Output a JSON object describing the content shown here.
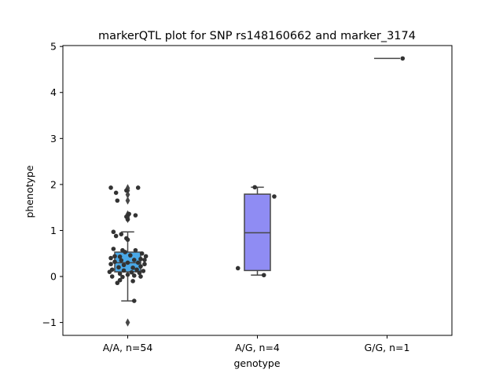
{
  "chart_data": {
    "type": "box",
    "title": "markerQTL plot for SNP rs148160662 and marker_3174",
    "xlabel": "genotype",
    "ylabel": "phenotype",
    "ylim": [
      -1.28,
      5.02
    ],
    "yticks": [
      -1,
      0,
      1,
      2,
      3,
      4,
      5
    ],
    "ytick_labels": [
      "−1",
      "0",
      "1",
      "2",
      "3",
      "4",
      "5"
    ],
    "grid": false,
    "legend": "none",
    "categories": [
      "A/A, n=54",
      "A/G, n=4",
      "G/G, n=1"
    ],
    "boxes": [
      {
        "category": "A/A, n=54",
        "color": "#4aa9e8",
        "q1": 0.1,
        "median": 0.3,
        "q3": 0.53,
        "whisker_low": -0.53,
        "whisker_high": 0.97,
        "fliers": [
          1.92,
          1.87,
          1.78,
          1.65,
          1.35,
          1.3,
          1.25,
          -1.0
        ]
      },
      {
        "category": "A/G, n=4",
        "color": "#8f8cf3",
        "q1": 0.13,
        "median": 0.95,
        "q3": 1.79,
        "whisker_low": 0.03,
        "whisker_high": 1.94,
        "fliers": []
      },
      {
        "category": "G/G, n=1",
        "color": "#c0c0c0",
        "q1": 4.74,
        "median": 4.74,
        "q3": 4.74,
        "whisker_low": 4.74,
        "whisker_high": 4.74,
        "fliers": []
      }
    ],
    "points": [
      [
        -0.13,
        1.93
      ],
      [
        -0.01,
        1.87
      ],
      [
        0.08,
        1.93
      ],
      [
        -0.09,
        1.82
      ],
      [
        -0.08,
        1.65
      ],
      [
        0.01,
        1.36
      ],
      [
        0.06,
        1.33
      ],
      [
        -0.01,
        1.3
      ],
      [
        0.0,
        1.24
      ],
      [
        -0.11,
        0.97
      ],
      [
        -0.05,
        0.92
      ],
      [
        -0.09,
        0.88
      ],
      [
        -0.01,
        0.83
      ],
      [
        0.0,
        0.8
      ],
      [
        -0.11,
        0.6
      ],
      [
        -0.04,
        0.57
      ],
      [
        0.06,
        0.57
      ],
      [
        -0.02,
        0.53
      ],
      [
        0.11,
        0.5
      ],
      [
        -0.1,
        0.44
      ],
      [
        -0.06,
        0.43
      ],
      [
        0.02,
        0.46
      ],
      [
        0.14,
        0.44
      ],
      [
        -0.13,
        0.4
      ],
      [
        0.1,
        0.38
      ],
      [
        0.13,
        0.36
      ],
      [
        -0.05,
        0.35
      ],
      [
        0.05,
        0.36
      ],
      [
        -0.1,
        0.32
      ],
      [
        0.0,
        0.3
      ],
      [
        0.08,
        0.3
      ],
      [
        -0.13,
        0.27
      ],
      [
        0.13,
        0.27
      ],
      [
        -0.03,
        0.25
      ],
      [
        0.1,
        0.22
      ],
      [
        -0.07,
        0.2
      ],
      [
        0.04,
        0.19
      ],
      [
        -0.12,
        0.15
      ],
      [
        0.07,
        0.15
      ],
      [
        -0.03,
        0.13
      ],
      [
        0.12,
        0.12
      ],
      [
        -0.14,
        0.1
      ],
      [
        0.03,
        0.09
      ],
      [
        0.09,
        0.08
      ],
      [
        -0.06,
        0.06
      ],
      [
        0.0,
        0.04
      ],
      [
        -0.12,
        0.0
      ],
      [
        0.05,
        0.02
      ],
      [
        -0.04,
        -0.01
      ],
      [
        0.1,
        0.0
      ],
      [
        -0.06,
        -0.08
      ],
      [
        0.04,
        -0.1
      ],
      [
        -0.08,
        -0.14
      ],
      [
        0.05,
        -0.53
      ],
      [
        0.85,
        0.18
      ],
      [
        0.98,
        1.94
      ],
      [
        1.05,
        0.03
      ],
      [
        1.13,
        1.74
      ],
      [
        2.12,
        4.74
      ]
    ]
  }
}
